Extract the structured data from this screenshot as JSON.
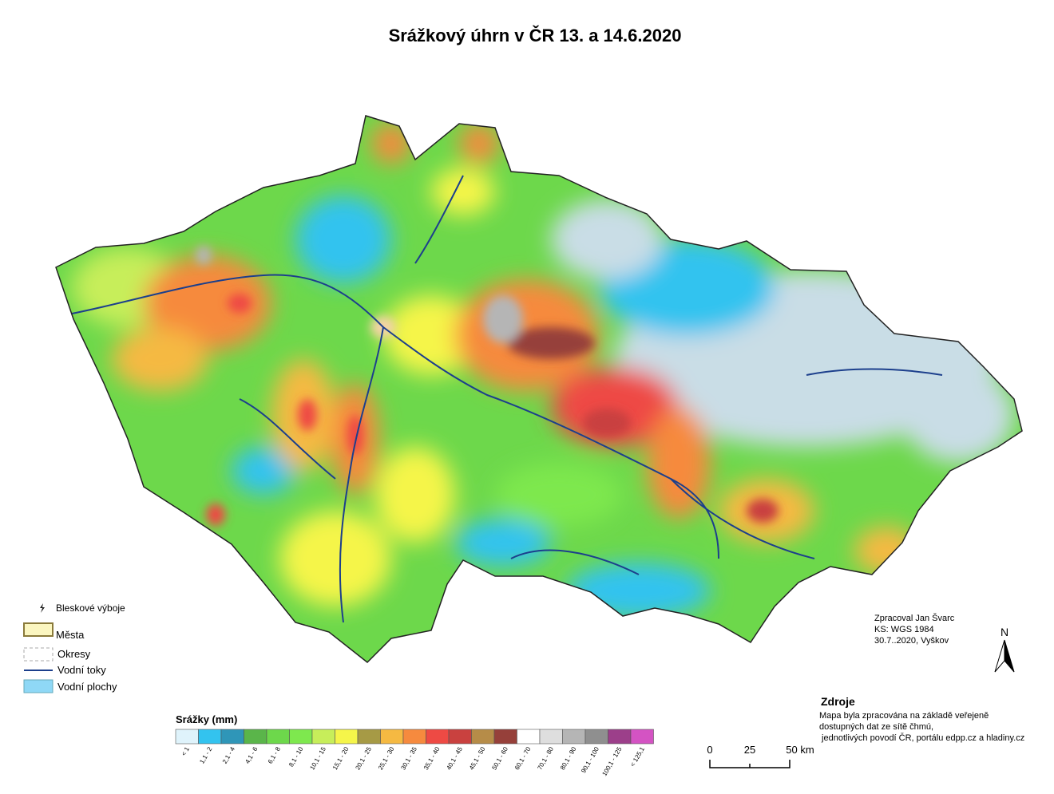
{
  "title": "Srážkový úhrn v ČR 13. a 14.6.2020",
  "legend": {
    "items": [
      {
        "label": "Bleskové výboje"
      },
      {
        "label": "Města"
      },
      {
        "label": "Okresy"
      },
      {
        "label": "Vodní toky"
      },
      {
        "label": "Vodní plochy"
      }
    ]
  },
  "precipitation_scale": {
    "title": "Srážky (mm)",
    "classes": [
      {
        "label": "< 1",
        "color": "#dff3fb"
      },
      {
        "label": "1,1 - 2",
        "color": "#33c3ef"
      },
      {
        "label": "2,1 - 4",
        "color": "#2f96b8"
      },
      {
        "label": "4,1 - 6",
        "color": "#5ab54a"
      },
      {
        "label": "6,1 - 8",
        "color": "#6dd84b"
      },
      {
        "label": "8,1 - 10",
        "color": "#7ee84e"
      },
      {
        "label": "10,1 - 15",
        "color": "#c7ee5a"
      },
      {
        "label": "15,1 - 20",
        "color": "#f5f54a"
      },
      {
        "label": "20,1 - 25",
        "color": "#a69a45"
      },
      {
        "label": "25,1 - 30",
        "color": "#f5b942"
      },
      {
        "label": "30,1 - 35",
        "color": "#f68a3e"
      },
      {
        "label": "35,1 - 40",
        "color": "#ee4a44"
      },
      {
        "label": "40,1 - 45",
        "color": "#c9413f"
      },
      {
        "label": "45,1 - 50",
        "color": "#b68c48"
      },
      {
        "label": "50,1 - 60",
        "color": "#96403a"
      },
      {
        "label": "60,1 - 70",
        "color": "#ffffff"
      },
      {
        "label": "70,1 - 80",
        "color": "#dedede"
      },
      {
        "label": "80,1 - 90",
        "color": "#b5b5b5"
      },
      {
        "label": "90,1 - 100",
        "color": "#8f8f8f"
      },
      {
        "label": "100,1 - 125",
        "color": "#9c3f8a"
      },
      {
        "label": "< 125,1",
        "color": "#d453c3"
      }
    ]
  },
  "credits": [
    "Zpracoval Jan Švarc",
    "KS: WGS 1984",
    "30.7..2020, Vyškov"
  ],
  "north": "N",
  "sources": {
    "title": "Zdroje",
    "lines": [
      "Mapa byla zpracována na základě veřejeně",
      "dostupných dat ze sítě čhmú,",
      " jednotlivých povodí ČR, portálu edpp.cz a hladiny.cz"
    ]
  },
  "scale_bar": {
    "labels": [
      "0",
      "25",
      "50 km"
    ]
  }
}
